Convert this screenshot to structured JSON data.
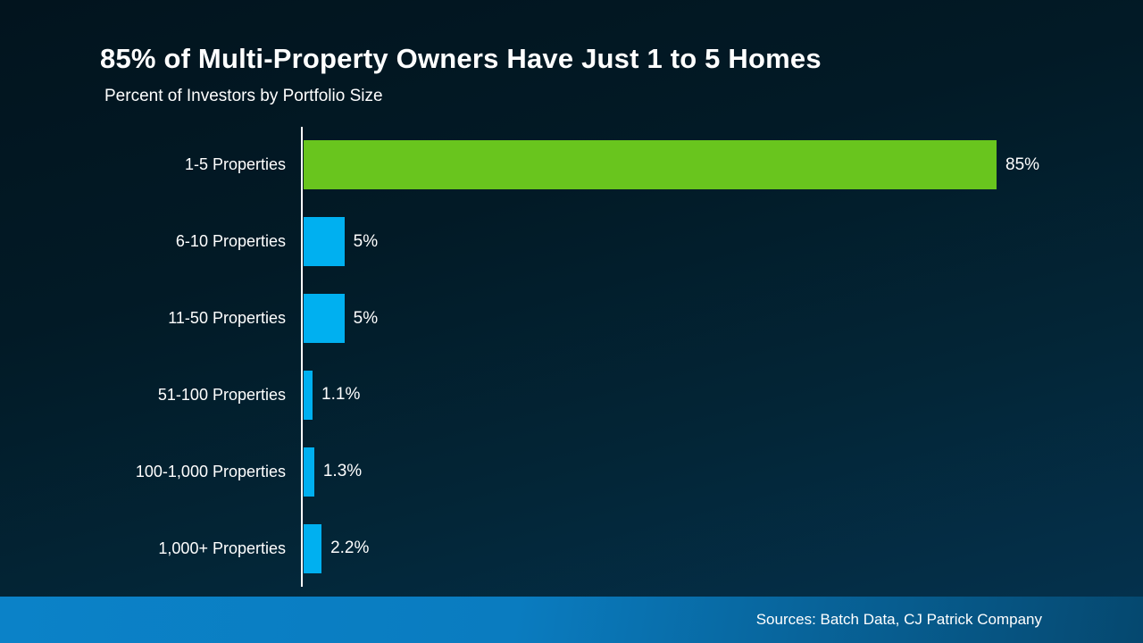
{
  "header": {
    "title": "85% of Multi-Property Owners Have Just 1 to 5 Homes",
    "subtitle": "Percent of Investors by Portfolio Size"
  },
  "chart_data": {
    "type": "bar",
    "orientation": "horizontal",
    "title": "85% of Multi-Property Owners Have Just 1 to 5 Homes",
    "subtitle": "Percent of Investors by Portfolio Size",
    "categories": [
      "1-5 Properties",
      "6-10 Properties",
      "11-50 Properties",
      "51-100 Properties",
      "100-1,000 Properties",
      "1,000+ Properties"
    ],
    "values": [
      85,
      5,
      5,
      1.1,
      1.3,
      2.2
    ],
    "value_labels": [
      "85%",
      "5%",
      "5%",
      "1.1%",
      "1.3%",
      "2.2%"
    ],
    "unit": "percent",
    "xlim": [
      0,
      90
    ],
    "grid": false,
    "legend": false,
    "colors": {
      "highlight_bar": "#69C51E",
      "default_bar": "#00B0F0",
      "axis_line": "#FFFFFF",
      "text": "#FFFFFF"
    }
  },
  "footer": {
    "sources": "Sources: Batch Data, CJ Patrick Company"
  },
  "theme": {
    "background_top": "#02141E",
    "background_bottom": "#043350",
    "footer_gradient_left": "#0B82C8",
    "footer_gradient_right": "#05486F"
  }
}
